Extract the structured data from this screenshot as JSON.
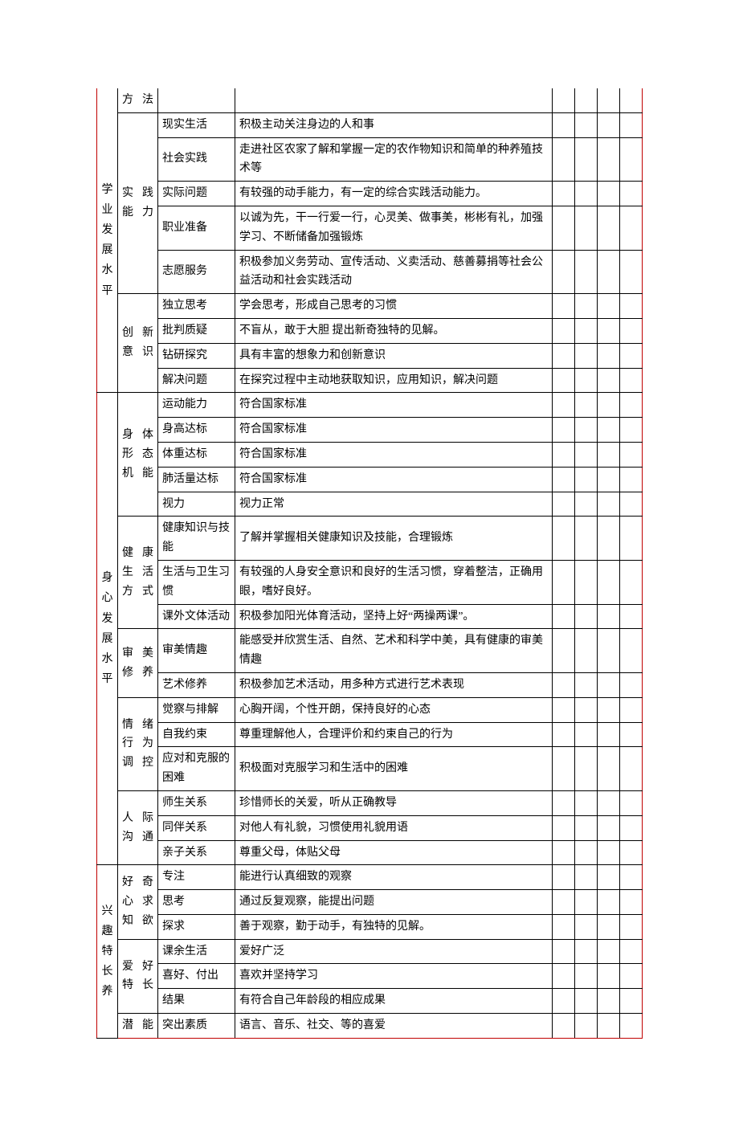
{
  "colors": {
    "outer_border": "#c00000",
    "inner_border": "#000000",
    "text": "#000000",
    "bg": "#ffffff"
  },
  "font_size_pt": 10.5,
  "sections": [
    {
      "level1": "学业发展水平",
      "groups": [
        {
          "level2": "方法",
          "rows": [
            {
              "level3": "",
              "desc": ""
            }
          ]
        },
        {
          "level2": "实践能力",
          "rows": [
            {
              "level3": "现实生活",
              "desc": "积极主动关注身边的人和事"
            },
            {
              "level3": "社会实践",
              "desc": "走进社区农家了解和掌握一定的农作物知识和简单的种养殖技术等"
            },
            {
              "level3": "实际问题",
              "desc": "有较强的动手能力，有一定的综合实践活动能力。"
            },
            {
              "level3": "职业准备",
              "desc": "以诚为先，干一行爱一行，心灵美、做事美，彬彬有礼，加强学习、不断储备加强锻炼"
            },
            {
              "level3": "志愿服务",
              "desc": "积极参加义务劳动、宣传活动、义卖活动、慈善募捐等社会公益活动和社会实践活动"
            }
          ]
        },
        {
          "level2": "创新意识",
          "rows": [
            {
              "level3": "独立思考",
              "desc": "学会思考，形成自己思考的习惯"
            },
            {
              "level3": "批判质疑",
              "desc": "不盲从，敢于大胆 提出新奇独特的见解。"
            },
            {
              "level3": "钻研探究",
              "desc": "具有丰富的想象力和创新意识"
            },
            {
              "level3": "解决问题",
              "desc": "在探究过程中主动地获取知识，应用知识，解决问题"
            }
          ]
        }
      ]
    },
    {
      "level1": "身心发展水平",
      "groups": [
        {
          "level2": "身体形态机能",
          "rows": [
            {
              "level3": "运动能力",
              "desc": "符合国家标准"
            },
            {
              "level3": "身高达标",
              "desc": "符合国家标准"
            },
            {
              "level3": "体重达标",
              "desc": "符合国家标准"
            },
            {
              "level3": "肺活量达标",
              "desc": "符合国家标准"
            },
            {
              "level3": "视力",
              "desc": "视力正常"
            }
          ]
        },
        {
          "level2": "健康生活方式",
          "rows": [
            {
              "level3": "健康知识与技能",
              "desc": "了解并掌握相关健康知识及技能，合理锻炼"
            },
            {
              "level3": "生活与卫生习惯",
              "desc": "有较强的人身安全意识和良好的生活习惯，穿着整洁，正确用眼，嗜好良好。"
            },
            {
              "level3": "课外文体活动",
              "desc": "积极参加阳光体育活动，坚持上好“两操两课”。"
            }
          ]
        },
        {
          "level2": "审美修养",
          "rows": [
            {
              "level3": "审美情趣",
              "desc": "能感受并欣赏生活、自然、艺术和科学中美，具有健康的审美情趣"
            },
            {
              "level3": "艺术修养",
              "desc": "积极参加艺术活动，用多种方式进行艺术表现"
            }
          ]
        },
        {
          "level2": "情绪行为调控",
          "rows": [
            {
              "level3": "觉察与排解",
              "desc": "心胸开阔，个性开朗，保持良好的心态"
            },
            {
              "level3": "自我约束",
              "desc": "尊重理解他人，合理评价和约束自己的行为"
            },
            {
              "level3": "应对和克服的困难",
              "desc": "积极面对克服学习和生活中的困难"
            }
          ]
        },
        {
          "level2": "人际沟通",
          "rows": [
            {
              "level3": "师生关系",
              "desc": "珍惜师长的关爱，听从正确教导"
            },
            {
              "level3": "同伴关系",
              "desc": "对他人有礼貌，习惯使用礼貌用语"
            },
            {
              "level3": "亲子关系",
              "desc": "尊重父母，体贴父母"
            }
          ]
        }
      ]
    },
    {
      "level1": "兴趣特长养",
      "groups": [
        {
          "level2": "好奇心求知欲",
          "rows": [
            {
              "level3": "专注",
              "desc": "能进行认真细致的观察"
            },
            {
              "level3": "思考",
              "desc": "通过反复观察，能提出问题"
            },
            {
              "level3": "探求",
              "desc": "善于观察，勤于动手，有独特的见解。"
            }
          ]
        },
        {
          "level2": "爱好特长",
          "rows": [
            {
              "level3": "课余生活",
              "desc": "爱好广泛"
            },
            {
              "level3": "喜好、付出",
              "desc": "喜欢并坚持学习"
            },
            {
              "level3": "结果",
              "desc": "有符合自己年龄段的相应成果"
            }
          ]
        },
        {
          "level2": "潜能",
          "rows": [
            {
              "level3": "突出素质",
              "desc": "语言、音乐、社交、等的喜爱"
            }
          ]
        }
      ]
    }
  ]
}
